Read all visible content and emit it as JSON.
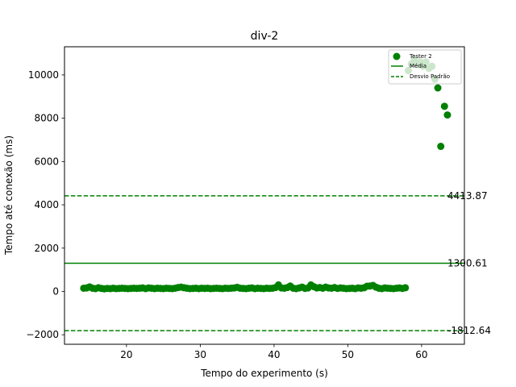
{
  "chart_data": {
    "type": "scatter",
    "title": "div-2",
    "xlabel": "Tempo do experimento (s)",
    "ylabel": "Tempo até conexão (ms)",
    "xlim": [
      11.6,
      65.8
    ],
    "ylim": [
      -2440,
      11300
    ],
    "xticks": [
      20,
      30,
      40,
      50,
      60
    ],
    "yticks": [
      -2000,
      0,
      2000,
      4000,
      6000,
      8000,
      10000
    ],
    "grid": false,
    "legend_position": "top-right",
    "colors": {
      "series": "#008000",
      "background": "#ffffff"
    },
    "series": [
      {
        "name": "Tester 2",
        "points": [
          [
            14.2,
            150
          ],
          [
            14.6,
            160
          ],
          [
            15.0,
            210
          ],
          [
            15.4,
            150
          ],
          [
            15.8,
            130
          ],
          [
            16.2,
            170
          ],
          [
            16.6,
            140
          ],
          [
            17.0,
            120
          ],
          [
            17.4,
            140
          ],
          [
            17.8,
            130
          ],
          [
            18.2,
            150
          ],
          [
            18.6,
            130
          ],
          [
            19.0,
            140
          ],
          [
            19.4,
            150
          ],
          [
            19.8,
            140
          ],
          [
            20.2,
            130
          ],
          [
            20.6,
            140
          ],
          [
            21.0,
            150
          ],
          [
            21.4,
            140
          ],
          [
            21.8,
            150
          ],
          [
            22.2,
            160
          ],
          [
            22.6,
            130
          ],
          [
            23.0,
            160
          ],
          [
            23.4,
            150
          ],
          [
            23.8,
            130
          ],
          [
            24.2,
            150
          ],
          [
            24.6,
            140
          ],
          [
            25.0,
            130
          ],
          [
            25.4,
            150
          ],
          [
            25.8,
            140
          ],
          [
            26.2,
            130
          ],
          [
            26.6,
            150
          ],
          [
            27.0,
            180
          ],
          [
            27.4,
            200
          ],
          [
            27.8,
            170
          ],
          [
            28.2,
            150
          ],
          [
            28.6,
            130
          ],
          [
            29.0,
            140
          ],
          [
            29.4,
            150
          ],
          [
            29.8,
            130
          ],
          [
            30.2,
            150
          ],
          [
            30.6,
            140
          ],
          [
            31.0,
            150
          ],
          [
            31.4,
            130
          ],
          [
            31.8,
            140
          ],
          [
            32.2,
            150
          ],
          [
            32.6,
            140
          ],
          [
            33.0,
            130
          ],
          [
            33.4,
            150
          ],
          [
            33.8,
            140
          ],
          [
            34.2,
            150
          ],
          [
            34.6,
            160
          ],
          [
            35.0,
            190
          ],
          [
            35.4,
            150
          ],
          [
            35.8,
            140
          ],
          [
            36.2,
            130
          ],
          [
            36.6,
            150
          ],
          [
            37.0,
            160
          ],
          [
            37.4,
            130
          ],
          [
            37.8,
            150
          ],
          [
            38.2,
            140
          ],
          [
            38.6,
            130
          ],
          [
            39.0,
            150
          ],
          [
            39.4,
            140
          ],
          [
            39.8,
            150
          ],
          [
            40.2,
            180
          ],
          [
            40.6,
            300
          ],
          [
            41.0,
            160
          ],
          [
            41.4,
            150
          ],
          [
            41.8,
            180
          ],
          [
            42.2,
            250
          ],
          [
            42.6,
            150
          ],
          [
            43.0,
            130
          ],
          [
            43.4,
            160
          ],
          [
            43.8,
            200
          ],
          [
            44.2,
            140
          ],
          [
            44.6,
            160
          ],
          [
            45.0,
            300
          ],
          [
            45.4,
            220
          ],
          [
            45.8,
            160
          ],
          [
            46.2,
            180
          ],
          [
            46.6,
            150
          ],
          [
            47.0,
            200
          ],
          [
            47.4,
            160
          ],
          [
            47.8,
            150
          ],
          [
            48.2,
            180
          ],
          [
            48.6,
            140
          ],
          [
            49.0,
            160
          ],
          [
            49.4,
            150
          ],
          [
            49.8,
            130
          ],
          [
            50.2,
            140
          ],
          [
            50.6,
            150
          ],
          [
            51.0,
            130
          ],
          [
            51.4,
            160
          ],
          [
            51.8,
            150
          ],
          [
            52.2,
            170
          ],
          [
            52.6,
            240
          ],
          [
            53.0,
            250
          ],
          [
            53.4,
            280
          ],
          [
            53.8,
            200
          ],
          [
            54.2,
            150
          ],
          [
            54.6,
            130
          ],
          [
            55.0,
            160
          ],
          [
            55.4,
            150
          ],
          [
            55.8,
            140
          ],
          [
            56.2,
            130
          ],
          [
            56.6,
            150
          ],
          [
            57.0,
            160
          ],
          [
            57.4,
            140
          ],
          [
            57.8,
            170
          ],
          [
            58.2,
            10200
          ],
          [
            58.6,
            10500
          ],
          [
            59.0,
            10700
          ],
          [
            59.4,
            10500
          ],
          [
            59.8,
            10600
          ],
          [
            60.2,
            10400
          ],
          [
            60.6,
            10600
          ],
          [
            61.0,
            10300
          ],
          [
            61.4,
            10400
          ],
          [
            61.8,
            9800
          ],
          [
            62.2,
            9400
          ],
          [
            62.6,
            6700
          ],
          [
            63.1,
            8550
          ],
          [
            63.5,
            8150
          ]
        ]
      }
    ],
    "reference_lines": [
      {
        "name": "Média",
        "value": 1300.61,
        "label": "1300.61",
        "style": "solid"
      },
      {
        "name": "Desvio Padrão",
        "value": 4413.87,
        "label": "4413.87",
        "style": "dashed"
      },
      {
        "value": -1812.64,
        "label": "-1812.64",
        "style": "dashed"
      }
    ]
  }
}
